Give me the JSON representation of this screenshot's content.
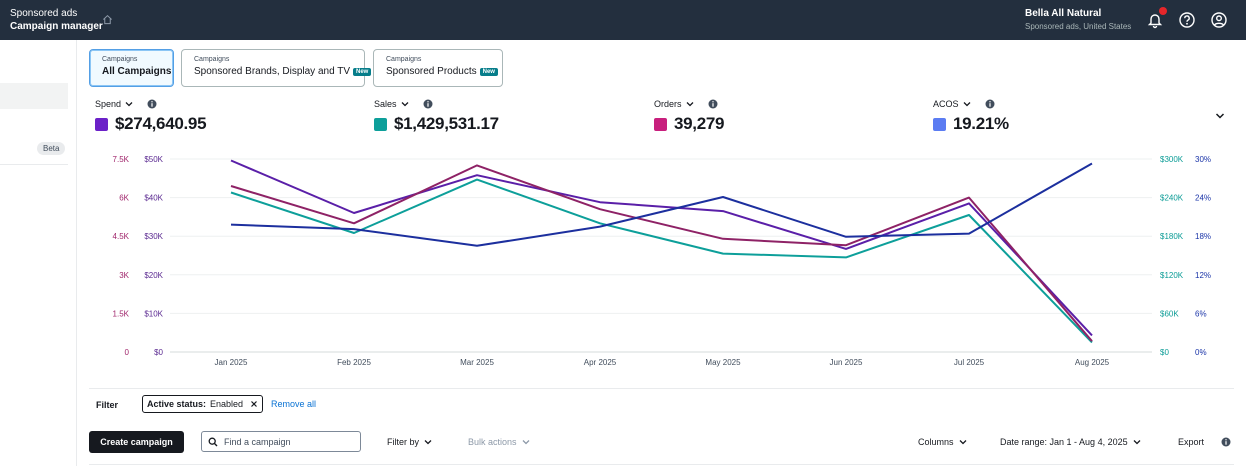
{
  "header": {
    "section": "Sponsored ads",
    "title": "Campaign manager",
    "account_name": "Bella All Natural",
    "account_sub": "Sponsored ads, United States"
  },
  "sidebar": {
    "beta_label": "Beta"
  },
  "tabs": [
    {
      "sub": "Campaigns",
      "label": "All Campaigns",
      "badge": ""
    },
    {
      "sub": "Campaigns",
      "label": "Sponsored Brands, Display and TV",
      "badge": "New"
    },
    {
      "sub": "Campaigns",
      "label": "Sponsored Products",
      "badge": "New"
    }
  ],
  "metrics": [
    {
      "label": "Spend",
      "value": "$274,640.95",
      "color": "#6b21c8"
    },
    {
      "label": "Sales",
      "value": "$1,429,531.17",
      "color": "#0d9f9a"
    },
    {
      "label": "Orders",
      "value": "39,279",
      "color": "#c81f7d"
    },
    {
      "label": "ACOS",
      "value": "19.21%",
      "color": "#5b7cf2"
    }
  ],
  "chart_data": {
    "type": "line",
    "categories": [
      "Jan 2025",
      "Feb 2025",
      "Mar 2025",
      "Apr 2025",
      "May 2025",
      "Jun 2025",
      "Jul 2025",
      "Aug 2025"
    ],
    "axes": {
      "orders": {
        "ticks": [
          "0",
          "1.5K",
          "3K",
          "4.5K",
          "6K",
          "7.5K"
        ],
        "max": 7500,
        "color": "#a0256b"
      },
      "spend": {
        "ticks": [
          "$0",
          "$10K",
          "$20K",
          "$30K",
          "$40K",
          "$50K"
        ],
        "max": 50000,
        "color": "#5b2a91"
      },
      "sales": {
        "ticks": [
          "$0",
          "$60K",
          "$120K",
          "$180K",
          "$240K",
          "$300K"
        ],
        "max": 300000,
        "color": "#0b9c96"
      },
      "acos": {
        "ticks": [
          "0%",
          "6%",
          "12%",
          "18%",
          "24%",
          "30%"
        ],
        "max": 30,
        "color": "#1a34a8"
      }
    },
    "series": [
      {
        "name": "Spend",
        "axis": "spend",
        "color": "#5a1fa8",
        "values": [
          49600,
          36000,
          45800,
          38800,
          36500,
          26700,
          38500,
          4300
        ]
      },
      {
        "name": "Sales",
        "axis": "sales",
        "color": "#0d9f9a",
        "values": [
          248000,
          185000,
          268000,
          200000,
          153000,
          147000,
          213000,
          15000
        ]
      },
      {
        "name": "Orders",
        "axis": "orders",
        "color": "#8e2266",
        "values": [
          6450,
          5000,
          7250,
          5550,
          4400,
          4150,
          6000,
          420
        ]
      },
      {
        "name": "ACOS",
        "axis": "acos",
        "color": "#1c2f9e",
        "values": [
          19.8,
          19.1,
          16.5,
          19.5,
          24.1,
          17.9,
          18.4,
          29.3
        ]
      }
    ]
  },
  "filter": {
    "label": "Filter",
    "chip_key": "Active status:",
    "chip_value": "Enabled",
    "remove_all": "Remove all"
  },
  "toolbar": {
    "create": "Create campaign",
    "search_placeholder": "Find a campaign",
    "filter_by": "Filter by",
    "bulk_actions": "Bulk actions",
    "columns": "Columns",
    "date_range": "Date range: Jan 1 - Aug 4, 2025",
    "export": "Export"
  }
}
